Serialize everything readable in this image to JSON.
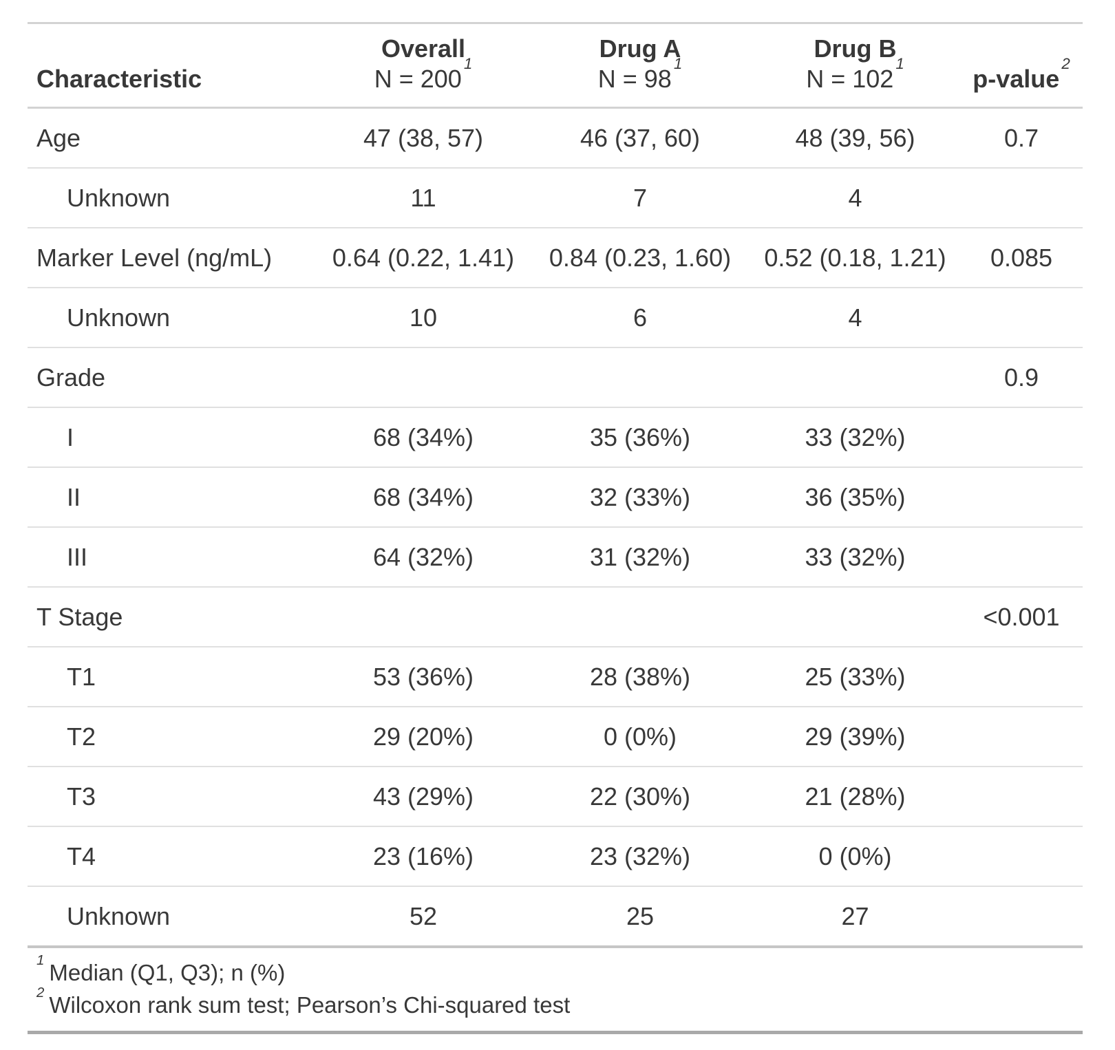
{
  "table": {
    "columns": [
      {
        "label": "Characteristic",
        "sublabel": "",
        "footnote_marker": ""
      },
      {
        "label": "Overall",
        "sublabel": "N = 200",
        "footnote_marker": "1"
      },
      {
        "label": "Drug A",
        "sublabel": "N = 98",
        "footnote_marker": "1"
      },
      {
        "label": "Drug B",
        "sublabel": "N = 102",
        "footnote_marker": "1"
      },
      {
        "label": "p-value",
        "sublabel": "",
        "footnote_marker": "2"
      }
    ],
    "rows": [
      {
        "label": "Age",
        "indent": false,
        "overall": "47 (38, 57)",
        "drug_a": "46 (37, 60)",
        "drug_b": "48 (39, 56)",
        "p_value": "0.7"
      },
      {
        "label": "Unknown",
        "indent": true,
        "overall": "11",
        "drug_a": "7",
        "drug_b": "4",
        "p_value": ""
      },
      {
        "label": "Marker Level (ng/mL)",
        "indent": false,
        "overall": "0.64 (0.22, 1.41)",
        "drug_a": "0.84 (0.23, 1.60)",
        "drug_b": "0.52 (0.18, 1.21)",
        "p_value": "0.085"
      },
      {
        "label": "Unknown",
        "indent": true,
        "overall": "10",
        "drug_a": "6",
        "drug_b": "4",
        "p_value": ""
      },
      {
        "label": "Grade",
        "indent": false,
        "overall": "",
        "drug_a": "",
        "drug_b": "",
        "p_value": "0.9"
      },
      {
        "label": "I",
        "indent": true,
        "overall": "68 (34%)",
        "drug_a": "35 (36%)",
        "drug_b": "33 (32%)",
        "p_value": ""
      },
      {
        "label": "II",
        "indent": true,
        "overall": "68 (34%)",
        "drug_a": "32 (33%)",
        "drug_b": "36 (35%)",
        "p_value": ""
      },
      {
        "label": "III",
        "indent": true,
        "overall": "64 (32%)",
        "drug_a": "31 (32%)",
        "drug_b": "33 (32%)",
        "p_value": ""
      },
      {
        "label": "T Stage",
        "indent": false,
        "overall": "",
        "drug_a": "",
        "drug_b": "",
        "p_value": "<0.001"
      },
      {
        "label": "T1",
        "indent": true,
        "overall": "53 (36%)",
        "drug_a": "28 (38%)",
        "drug_b": "25 (33%)",
        "p_value": ""
      },
      {
        "label": "T2",
        "indent": true,
        "overall": "29 (20%)",
        "drug_a": "0 (0%)",
        "drug_b": "29 (39%)",
        "p_value": ""
      },
      {
        "label": "T3",
        "indent": true,
        "overall": "43 (29%)",
        "drug_a": "22 (30%)",
        "drug_b": "21 (28%)",
        "p_value": ""
      },
      {
        "label": "T4",
        "indent": true,
        "overall": "23 (16%)",
        "drug_a": "23 (32%)",
        "drug_b": "0 (0%)",
        "p_value": ""
      },
      {
        "label": "Unknown",
        "indent": true,
        "overall": "52",
        "drug_a": "25",
        "drug_b": "27",
        "p_value": ""
      }
    ],
    "footnotes": [
      {
        "marker": "1",
        "text": "Median (Q1, Q3); n (%)"
      },
      {
        "marker": "2",
        "text": "Wilcoxon rank sum test; Pearson’s Chi-squared test"
      }
    ],
    "colors": {
      "text": "#383838",
      "row_border": "#e0e0e0",
      "header_border": "#d3d3d3",
      "section_border": "#c6c6c6",
      "table_bottom_border": "#a9a9a9"
    }
  }
}
